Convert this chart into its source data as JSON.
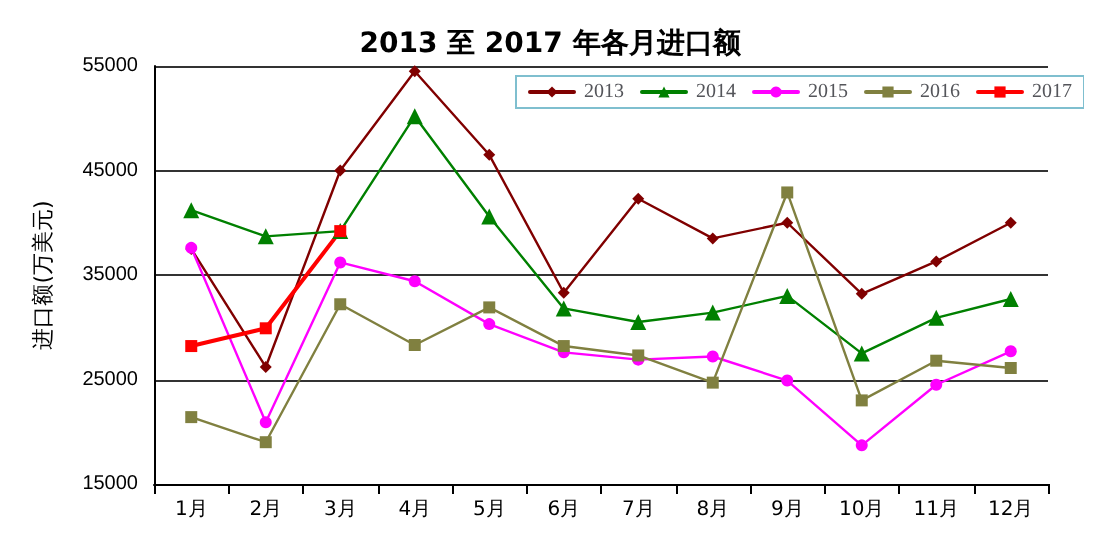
{
  "chart_data": {
    "type": "line",
    "title": "2013 至 2017 年各月进口额",
    "ylabel": "进口额(万美元)",
    "categories": [
      "1月",
      "2月",
      "3月",
      "4月",
      "5月",
      "6月",
      "7月",
      "8月",
      "9月",
      "10月",
      "11月",
      "12月"
    ],
    "ylim": [
      15000,
      55000
    ],
    "yticks": [
      15000,
      25000,
      35000,
      45000,
      55000
    ],
    "grid": "y",
    "legend": "top right",
    "series": [
      {
        "name": "2013",
        "color": "#800000",
        "marker": "diamond",
        "values": [
          37500,
          26200,
          45000,
          54500,
          46500,
          33300,
          42300,
          38500,
          40000,
          33200,
          36300,
          40000
        ]
      },
      {
        "name": "2014",
        "color": "#008000",
        "marker": "triangle",
        "values": [
          41200,
          38700,
          39200,
          50200,
          40600,
          31800,
          30500,
          31400,
          33000,
          27500,
          30900,
          32700
        ]
      },
      {
        "name": "2015",
        "color": "#ff00ff",
        "marker": "circle",
        "values": [
          37600,
          20900,
          36200,
          34400,
          30300,
          27600,
          26900,
          27200,
          24900,
          18700,
          24500,
          27700
        ]
      },
      {
        "name": "2016",
        "color": "#808040",
        "marker": "square",
        "values": [
          21400,
          19000,
          32200,
          28300,
          31900,
          28200,
          27300,
          24700,
          42900,
          23000,
          26800,
          26100
        ]
      },
      {
        "name": "2017",
        "color": "#ff0000",
        "marker": "square",
        "values": [
          28200,
          29900,
          39200,
          null,
          null,
          null,
          null,
          null,
          null,
          null,
          null,
          null
        ]
      }
    ]
  }
}
